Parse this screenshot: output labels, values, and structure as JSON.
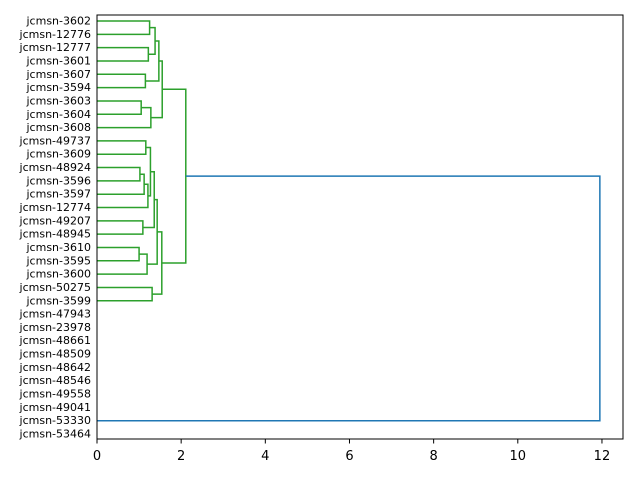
{
  "chart_data": {
    "type": "dendrogram",
    "title": "",
    "xlabel": "",
    "ylabel": "",
    "orientation": "right",
    "grid": false,
    "legend": null,
    "x_ticks": [
      0,
      2,
      4,
      6,
      8,
      10,
      12
    ],
    "xlim": [
      0,
      12.5
    ],
    "n_leaves": 32,
    "leaves": [
      "jcmsn-3602",
      "jcmsn-12776",
      "jcmsn-12777",
      "jcmsn-3601",
      "jcmsn-3607",
      "jcmsn-3594",
      "jcmsn-3603",
      "jcmsn-3604",
      "jcmsn-3608",
      "jcmsn-49737",
      "jcmsn-3609",
      "jcmsn-48924",
      "jcmsn-3596",
      "jcmsn-3597",
      "jcmsn-12774",
      "jcmsn-49207",
      "jcmsn-48945",
      "jcmsn-3610",
      "jcmsn-3595",
      "jcmsn-3600",
      "jcmsn-50275",
      "jcmsn-3599",
      "jcmsn-47943",
      "jcmsn-23978",
      "jcmsn-48661",
      "jcmsn-48509",
      "jcmsn-48642",
      "jcmsn-48546",
      "jcmsn-49558",
      "jcmsn-49041",
      "jcmsn-53330",
      "jcmsn-53464"
    ],
    "colors": {
      "g": "#2ca02c",
      "b": "#1f77b4",
      "axis": "#000000",
      "background": "#ffffff"
    },
    "root_height": 11.95,
    "tree": {
      "h": 11.95,
      "c": "b",
      "children": [
        {
          "h": 2.11,
          "c": "g",
          "children": [
            {
              "h": 1.55,
              "c": "g",
              "children": [
                {
                  "h": 1.47,
                  "c": "g",
                  "children": [
                    {
                      "h": 1.38,
                      "c": "g",
                      "children": [
                        {
                          "h": 1.25,
                          "c": "g",
                          "children": [
                            {
                              "leaf": 0
                            },
                            {
                              "leaf": 1
                            }
                          ]
                        },
                        {
                          "h": 1.22,
                          "c": "g",
                          "children": [
                            {
                              "leaf": 2
                            },
                            {
                              "leaf": 3
                            }
                          ]
                        }
                      ]
                    },
                    {
                      "h": 1.15,
                      "c": "g",
                      "children": [
                        {
                          "leaf": 4
                        },
                        {
                          "leaf": 5
                        }
                      ]
                    }
                  ]
                },
                {
                  "h": 1.28,
                  "c": "g",
                  "children": [
                    {
                      "h": 1.05,
                      "c": "g",
                      "children": [
                        {
                          "leaf": 6
                        },
                        {
                          "leaf": 7
                        }
                      ]
                    },
                    {
                      "leaf": 8
                    }
                  ]
                }
              ]
            },
            {
              "h": 1.54,
              "c": "g",
              "children": [
                {
                  "h": 1.43,
                  "c": "g",
                  "children": [
                    {
                      "h": 1.36,
                      "c": "g",
                      "children": [
                        {
                          "h": 1.27,
                          "c": "g",
                          "children": [
                            {
                              "h": 1.16,
                              "c": "g",
                              "children": [
                                {
                                  "leaf": 9
                                },
                                {
                                  "leaf": 10
                                }
                              ]
                            },
                            {
                              "h": 1.21,
                              "c": "g",
                              "children": [
                                {
                                  "h": 1.12,
                                  "c": "g",
                                  "children": [
                                    {
                                      "h": 1.02,
                                      "c": "g",
                                      "children": [
                                        {
                                          "leaf": 11
                                        },
                                        {
                                          "leaf": 12
                                        }
                                      ]
                                    },
                                    {
                                      "leaf": 13
                                    }
                                  ]
                                },
                                {
                                  "leaf": 14
                                }
                              ]
                            }
                          ]
                        },
                        {
                          "h": 1.09,
                          "c": "g",
                          "children": [
                            {
                              "leaf": 15
                            },
                            {
                              "leaf": 16
                            }
                          ]
                        }
                      ]
                    },
                    {
                      "h": 1.19,
                      "c": "g",
                      "children": [
                        {
                          "h": 1.0,
                          "c": "g",
                          "children": [
                            {
                              "leaf": 17
                            },
                            {
                              "leaf": 18
                            }
                          ]
                        },
                        {
                          "leaf": 19
                        }
                      ]
                    }
                  ]
                },
                {
                  "h": 1.31,
                  "c": "g",
                  "children": [
                    {
                      "leaf": 20
                    },
                    {
                      "leaf": 21
                    }
                  ]
                }
              ]
            }
          ]
        },
        {
          "h": 0,
          "c": "b",
          "children": [
            {
              "h": 0,
              "c": "b",
              "children": [
                {
                  "h": 0,
                  "c": "b",
                  "children": [
                    {
                      "h": 0,
                      "c": "b",
                      "children": [
                        {
                          "h": 0,
                          "c": "b",
                          "children": [
                            {
                              "h": 0,
                              "c": "b",
                              "children": [
                                {
                                  "h": 0,
                                  "c": "b",
                                  "children": [
                                    {
                                      "h": 0,
                                      "c": "b",
                                      "children": [
                                        {
                                          "h": 0,
                                          "c": "b",
                                          "children": [
                                            {
                                              "leaf": 22
                                            },
                                            {
                                              "leaf": 23
                                            }
                                          ]
                                        },
                                        {
                                          "leaf": 24
                                        }
                                      ]
                                    },
                                    {
                                      "leaf": 25
                                    }
                                  ]
                                },
                                {
                                  "leaf": 26
                                }
                              ]
                            },
                            {
                              "leaf": 27
                            }
                          ]
                        },
                        {
                          "leaf": 28
                        }
                      ]
                    },
                    {
                      "leaf": 29
                    }
                  ]
                },
                {
                  "leaf": 30
                }
              ]
            },
            {
              "leaf": 31
            }
          ]
        }
      ]
    }
  }
}
